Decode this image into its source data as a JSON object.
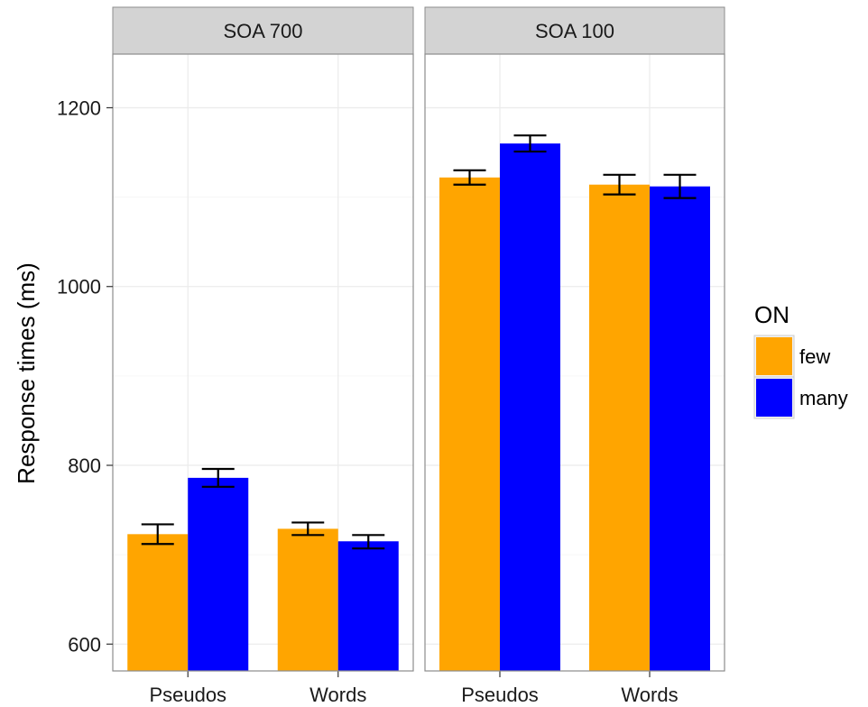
{
  "chart_data": {
    "type": "bar",
    "ylabel": "Response times (ms)",
    "xlabel": "",
    "ylim": [
      570,
      1260
    ],
    "yticks": [
      600,
      800,
      1000,
      1200
    ],
    "categories": [
      "Pseudos",
      "Words"
    ],
    "grid": true,
    "legend": {
      "title": "ON",
      "placement": "right",
      "entries": [
        {
          "label": "few",
          "color": "#FFA500"
        },
        {
          "label": "many",
          "color": "#0000FF"
        }
      ]
    },
    "facets": [
      {
        "label": "SOA 700",
        "series": [
          {
            "name": "few",
            "color": "#FFA500",
            "values": [
              723,
              729
            ],
            "error_low": [
              712,
              722
            ],
            "error_high": [
              734,
              736
            ]
          },
          {
            "name": "many",
            "color": "#0000FF",
            "values": [
              786,
              715
            ],
            "error_low": [
              776,
              707
            ],
            "error_high": [
              796,
              722
            ]
          }
        ]
      },
      {
        "label": "SOA 100",
        "series": [
          {
            "name": "few",
            "color": "#FFA500",
            "values": [
              1122,
              1114
            ],
            "error_low": [
              1114,
              1103
            ],
            "error_high": [
              1130,
              1125
            ]
          },
          {
            "name": "many",
            "color": "#0000FF",
            "values": [
              1160,
              1112
            ],
            "error_low": [
              1151,
              1099
            ],
            "error_high": [
              1169,
              1125
            ]
          }
        ]
      }
    ]
  }
}
